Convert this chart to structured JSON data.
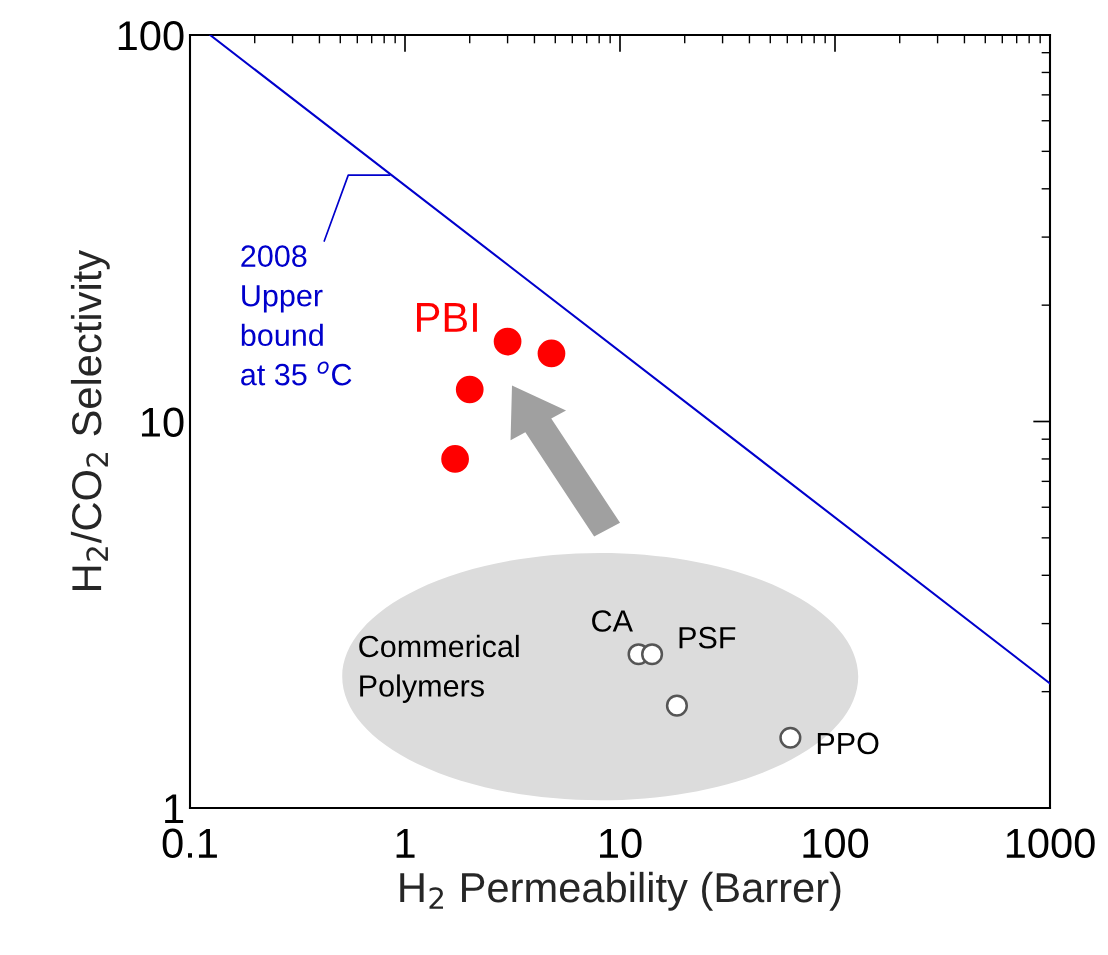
{
  "chart_data": {
    "type": "scatter",
    "xlabel": "H$_{2}$ Permeability (Barrer)",
    "ylabel": "H$_{2}$/CO$_{2}$ Selectivity",
    "log": "xy",
    "xlim": [
      0.1,
      1000
    ],
    "ylim": [
      1,
      100
    ],
    "xticks": [
      0.1,
      1,
      10,
      100,
      1000
    ],
    "yticks": [
      1,
      10,
      100
    ],
    "grid": false,
    "series": [
      {
        "type": "line",
        "marker": "none",
        "color": "#0000cc",
        "x": [
          0.124,
          1000
        ],
        "values": [
          100,
          2.1
        ]
      },
      {
        "marker": "circle",
        "color": "#ff0000",
        "x": [
          1.71,
          2.0,
          3.0,
          4.8
        ],
        "values": [
          8.0,
          12.1,
          16.1,
          15.0
        ]
      },
      {
        "marker": "circle",
        "color": "#ffffff",
        "x": [
          12.2,
          14.1,
          18.4,
          62
        ],
        "values": [
          2.5,
          2.5,
          1.84,
          1.52
        ]
      }
    ],
    "annotations": [
      {
        "text": "2008\nUpper\nbound\nat 35 $^{o}$C",
        "x": 0.85,
        "y": 43.4
      },
      "PBI",
      "Commerical\nPolymers",
      {
        "text": "CA",
        "x": 12.2,
        "y": 2.5
      },
      {
        "text": "PSF",
        "x": 14.1,
        "y": 2.5
      },
      {
        "text": "PPO",
        "x": 62,
        "y": 1.52
      }
    ]
  }
}
